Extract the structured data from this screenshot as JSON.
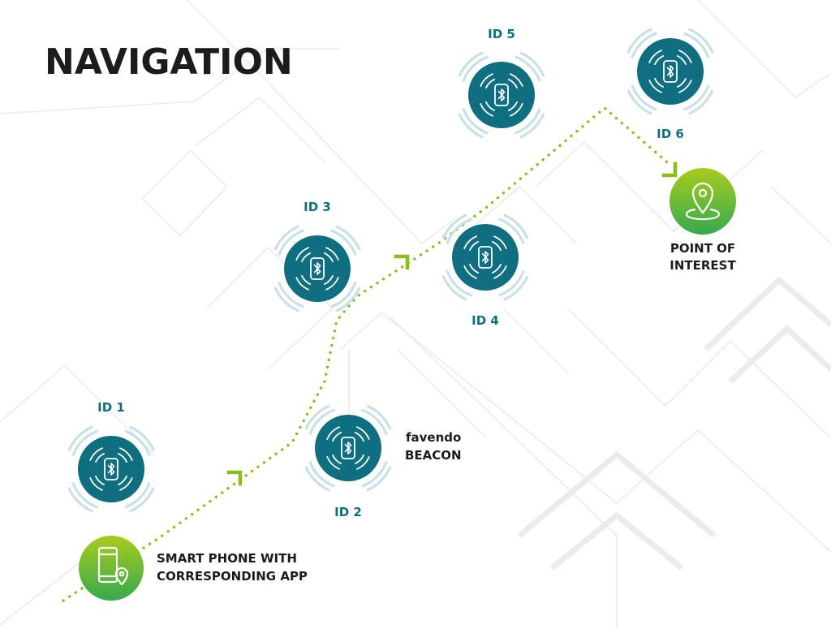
{
  "title": "NAVIGATION",
  "beacons": [
    {
      "id_label": "ID 1"
    },
    {
      "id_label": "ID 2"
    },
    {
      "id_label": "ID 3"
    },
    {
      "id_label": "ID 4"
    },
    {
      "id_label": "ID 5"
    },
    {
      "id_label": "ID 6"
    }
  ],
  "beacon_brand": {
    "logo_text": "favendo",
    "label": "BEACON"
  },
  "phone": {
    "line1": "SMART PHONE WITH",
    "line2": "CORRESPONDING APP"
  },
  "poi": {
    "line1": "POINT OF",
    "line2": "INTEREST"
  },
  "icons": {
    "beacon": "bluetooth-icon",
    "phone": "smartphone-location-icon",
    "poi": "map-pin-icon"
  },
  "colors": {
    "beacon_fill": "#0f6e80",
    "path": "#8cbd1f",
    "green_start": "#9cc81f",
    "green_end": "#3aab4e",
    "signal_arc": "#c9e0e6",
    "text_dark": "#1c1c1c",
    "text_teal": "#0f6e80"
  }
}
